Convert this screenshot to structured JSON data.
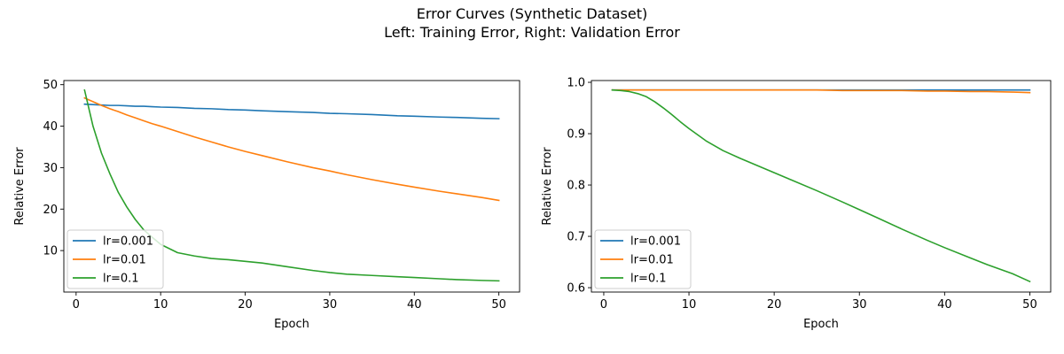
{
  "figure": {
    "title_line1": "Error Curves (Synthetic Dataset)",
    "title_line2": "Left: Training Error, Right: Validation Error"
  },
  "chart_data": [
    {
      "type": "line",
      "title": "",
      "xlabel": "Epoch",
      "ylabel": "Relative Error",
      "xlim": [
        -1.45,
        52.45
      ],
      "ylim": [
        0.0,
        51.0
      ],
      "xticks": [
        0,
        10,
        20,
        30,
        40,
        50
      ],
      "yticks": [
        10,
        20,
        30,
        40,
        50
      ],
      "legend": "lower-left",
      "grid": false,
      "x": [
        1,
        2,
        3,
        4,
        5,
        6,
        7,
        8,
        9,
        10,
        12,
        14,
        16,
        18,
        20,
        22,
        25,
        28,
        30,
        32,
        35,
        38,
        40,
        43,
        45,
        48,
        50
      ],
      "series": [
        {
          "name": "lr=0.001",
          "color": "#1f77b4",
          "values": [
            45.3,
            45.2,
            45.1,
            45.0,
            45.0,
            44.9,
            44.8,
            44.8,
            44.7,
            44.6,
            44.5,
            44.3,
            44.2,
            44.0,
            43.9,
            43.7,
            43.5,
            43.3,
            43.1,
            43.0,
            42.8,
            42.5,
            42.4,
            42.2,
            42.1,
            41.9,
            41.8
          ]
        },
        {
          "name": "lr=0.01",
          "color": "#ff7f0e",
          "values": [
            46.8,
            45.9,
            45.0,
            44.2,
            43.5,
            42.7,
            42.0,
            41.3,
            40.6,
            40.0,
            38.7,
            37.4,
            36.2,
            35.0,
            33.9,
            32.9,
            31.4,
            30.0,
            29.2,
            28.3,
            27.1,
            26.0,
            25.3,
            24.3,
            23.7,
            22.8,
            22.1
          ]
        },
        {
          "name": "lr=0.1",
          "color": "#2ca02c",
          "values": [
            48.7,
            40.0,
            33.5,
            28.5,
            24.0,
            20.5,
            17.5,
            15.0,
            13.2,
            11.5,
            9.5,
            8.7,
            8.1,
            7.8,
            7.4,
            7.0,
            6.1,
            5.2,
            4.7,
            4.3,
            4.0,
            3.7,
            3.5,
            3.2,
            3.0,
            2.8,
            2.7
          ]
        }
      ]
    },
    {
      "type": "line",
      "title": "",
      "xlabel": "Epoch",
      "ylabel": "Relative Error",
      "xlim": [
        -1.45,
        52.45
      ],
      "ylim": [
        0.5915,
        1.0035
      ],
      "xticks": [
        0,
        10,
        20,
        30,
        40,
        50
      ],
      "yticks": [
        0.6,
        0.7,
        0.8,
        0.9,
        1.0
      ],
      "legend": "lower-left",
      "grid": false,
      "x": [
        1,
        2,
        3,
        4,
        5,
        6,
        7,
        8,
        9,
        10,
        12,
        14,
        16,
        18,
        20,
        22,
        25,
        28,
        30,
        32,
        35,
        38,
        40,
        43,
        45,
        48,
        50
      ],
      "series": [
        {
          "name": "lr=0.001",
          "color": "#1f77b4",
          "values": [
            0.985,
            0.985,
            0.985,
            0.985,
            0.985,
            0.985,
            0.985,
            0.985,
            0.985,
            0.985,
            0.985,
            0.985,
            0.985,
            0.985,
            0.985,
            0.985,
            0.985,
            0.985,
            0.985,
            0.985,
            0.985,
            0.985,
            0.985,
            0.985,
            0.985,
            0.985,
            0.985
          ]
        },
        {
          "name": "lr=0.01",
          "color": "#ff7f0e",
          "values": [
            0.985,
            0.985,
            0.985,
            0.985,
            0.985,
            0.985,
            0.985,
            0.985,
            0.985,
            0.985,
            0.985,
            0.985,
            0.985,
            0.985,
            0.985,
            0.985,
            0.985,
            0.984,
            0.984,
            0.984,
            0.984,
            0.983,
            0.983,
            0.982,
            0.982,
            0.981,
            0.98
          ]
        },
        {
          "name": "lr=0.1",
          "color": "#2ca02c",
          "values": [
            0.985,
            0.984,
            0.982,
            0.978,
            0.972,
            0.962,
            0.95,
            0.937,
            0.923,
            0.91,
            0.886,
            0.867,
            0.852,
            0.838,
            0.824,
            0.81,
            0.789,
            0.767,
            0.752,
            0.737,
            0.714,
            0.692,
            0.678,
            0.658,
            0.645,
            0.627,
            0.612
          ]
        }
      ]
    }
  ]
}
